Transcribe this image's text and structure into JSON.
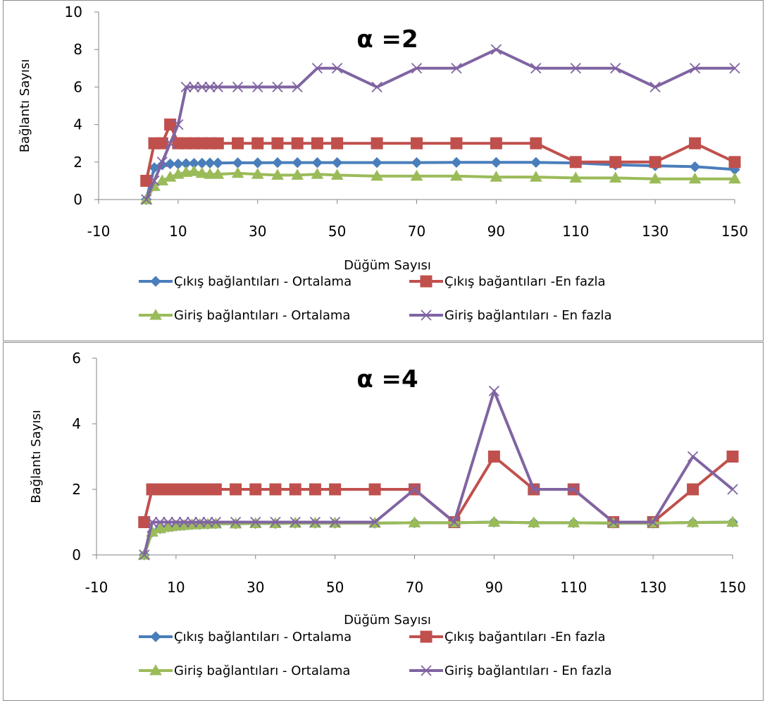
{
  "colors": {
    "series": [
      "#4a7ebb",
      "#c0504d",
      "#9bbb59",
      "#8064a2"
    ],
    "axis": "#868686",
    "border": "#8c8c8c"
  },
  "chart_data": [
    {
      "type": "line",
      "title": "α =2",
      "xlabel": "Düğüm Sayısı",
      "ylabel": "Bağlantı Sayısı",
      "xlim": [
        -10,
        150
      ],
      "ylim": [
        0,
        10
      ],
      "xticks": [
        "-10",
        "10",
        "30",
        "50",
        "70",
        "90",
        "110",
        "130",
        "150"
      ],
      "yticks": [
        "0",
        "2",
        "4",
        "6",
        "8",
        "10"
      ],
      "legend": "bottom",
      "x": [
        2,
        4,
        6,
        8,
        10,
        12,
        14,
        16,
        18,
        20,
        25,
        30,
        35,
        40,
        45,
        50,
        60,
        70,
        80,
        90,
        100,
        110,
        120,
        130,
        140,
        150
      ],
      "series": [
        {
          "name": "Çıkış bağlantıları - Ortalama",
          "marker": "diamond",
          "values": [
            0,
            1.7,
            1.85,
            1.9,
            1.9,
            1.92,
            1.93,
            1.94,
            1.95,
            1.95,
            1.96,
            1.96,
            1.97,
            1.97,
            1.97,
            1.97,
            1.97,
            1.97,
            1.98,
            1.98,
            1.98,
            1.95,
            1.85,
            1.8,
            1.75,
            1.6
          ]
        },
        {
          "name": "Çıkış bağantıları -En fazla",
          "marker": "square",
          "values": [
            1,
            3,
            3,
            4,
            3,
            3,
            3,
            3,
            3,
            3,
            3,
            3,
            3,
            3,
            3,
            3,
            3,
            3,
            3,
            3,
            3,
            2,
            2,
            2,
            3,
            2
          ]
        },
        {
          "name": "Giriş bağlantıları - Ortalama",
          "marker": "triangle",
          "values": [
            0,
            0.7,
            1.0,
            1.2,
            1.35,
            1.45,
            1.5,
            1.4,
            1.35,
            1.35,
            1.4,
            1.35,
            1.3,
            1.3,
            1.35,
            1.3,
            1.25,
            1.25,
            1.25,
            1.2,
            1.2,
            1.15,
            1.15,
            1.1,
            1.1,
            1.1
          ]
        },
        {
          "name": "Giriş bağlantıları - En fazla",
          "marker": "x",
          "values": [
            0,
            1,
            2,
            3,
            4,
            6,
            6,
            6,
            6,
            6,
            6,
            6,
            6,
            6,
            7,
            7,
            6,
            7,
            7,
            8,
            7,
            7,
            7,
            6,
            7,
            7
          ]
        }
      ]
    },
    {
      "type": "line",
      "title": "α =4",
      "xlabel": "Düğüm Sayısı",
      "ylabel": "Bağlantı Sayısı",
      "xlim": [
        -10,
        150
      ],
      "ylim": [
        0,
        6
      ],
      "xticks": [
        "-10",
        "10",
        "30",
        "50",
        "70",
        "90",
        "110",
        "130",
        "150"
      ],
      "yticks": [
        "0",
        "2",
        "4",
        "6"
      ],
      "legend": "bottom",
      "x": [
        2,
        4,
        6,
        8,
        10,
        12,
        14,
        16,
        18,
        20,
        25,
        30,
        35,
        40,
        45,
        50,
        60,
        70,
        80,
        90,
        100,
        110,
        120,
        130,
        140,
        150
      ],
      "series": [
        {
          "name": "Çıkış bağlantıları - Ortalama",
          "marker": "diamond",
          "values": [
            0,
            0.7,
            0.8,
            0.85,
            0.88,
            0.9,
            0.92,
            0.93,
            0.94,
            0.95,
            0.95,
            0.96,
            0.96,
            0.97,
            0.97,
            0.97,
            0.97,
            0.98,
            0.98,
            1.0,
            0.98,
            0.98,
            0.97,
            0.97,
            0.99,
            1.0
          ]
        },
        {
          "name": "Çıkış bağantıları -En fazla",
          "marker": "square",
          "values": [
            1,
            2,
            2,
            2,
            2,
            2,
            2,
            2,
            2,
            2,
            2,
            2,
            2,
            2,
            2,
            2,
            2,
            2,
            1,
            3,
            2,
            2,
            1,
            1,
            2,
            3
          ]
        },
        {
          "name": "Giriş bağlantıları - Ortalama",
          "marker": "triangle",
          "values": [
            0,
            0.7,
            0.8,
            0.85,
            0.88,
            0.9,
            0.92,
            0.93,
            0.94,
            0.95,
            0.95,
            0.96,
            0.96,
            0.97,
            0.97,
            0.97,
            0.97,
            0.98,
            0.98,
            1.0,
            0.98,
            0.98,
            0.97,
            0.97,
            0.99,
            1.0
          ]
        },
        {
          "name": "Giriş bağlantıları - En fazla",
          "marker": "x",
          "values": [
            0,
            1,
            1,
            1,
            1,
            1,
            1,
            1,
            1,
            1,
            1,
            1,
            1,
            1,
            1,
            1,
            1,
            2,
            1,
            5,
            2,
            2,
            1,
            1,
            3,
            2
          ]
        }
      ]
    }
  ]
}
